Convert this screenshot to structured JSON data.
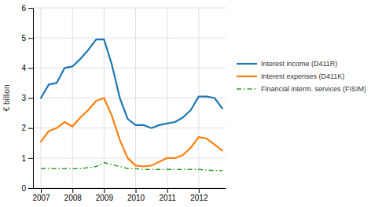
{
  "chart_data": {
    "type": "line",
    "ylabel": "€ billion",
    "x": [
      2007,
      2007.25,
      2007.5,
      2007.75,
      2008.0,
      2008.25,
      2008.5,
      2008.75,
      2009.0,
      2009.25,
      2009.5,
      2009.75,
      2010.0,
      2010.25,
      2010.5,
      2010.75,
      2011.0,
      2011.25,
      2011.5,
      2011.75,
      2012.0,
      2012.25,
      2012.5,
      2012.75
    ],
    "series": [
      {
        "name": "Interest income (D411R)",
        "line_style": "solid",
        "values": [
          3.0,
          3.45,
          3.5,
          4.0,
          4.05,
          4.3,
          4.6,
          4.95,
          4.95,
          4.1,
          3.0,
          2.3,
          2.1,
          2.1,
          2.0,
          2.1,
          2.15,
          2.2,
          2.35,
          2.6,
          3.05,
          3.05,
          3.0,
          2.65
        ]
      },
      {
        "name": "Interest expenses (D411K)",
        "line_style": "solid",
        "values": [
          1.55,
          1.9,
          2.0,
          2.2,
          2.05,
          2.35,
          2.6,
          2.9,
          3.0,
          2.4,
          1.6,
          1.0,
          0.75,
          0.72,
          0.75,
          0.88,
          1.0,
          1.0,
          1.1,
          1.35,
          1.7,
          1.65,
          1.45,
          1.25
        ]
      },
      {
        "name": "Financial interm. services (FISIM)",
        "line_style": "dashdot",
        "values": [
          0.65,
          0.65,
          0.65,
          0.65,
          0.65,
          0.65,
          0.68,
          0.72,
          0.85,
          0.78,
          0.72,
          0.65,
          0.65,
          0.62,
          0.62,
          0.62,
          0.62,
          0.62,
          0.62,
          0.62,
          0.62,
          0.6,
          0.58,
          0.58
        ]
      }
    ],
    "xlim": [
      2006.75,
      2012.85
    ],
    "xticks": [
      2007,
      2008,
      2009,
      2010,
      2011,
      2012
    ],
    "ylim": [
      0,
      6
    ],
    "yticks": [
      0,
      1,
      2,
      3,
      4,
      5,
      6
    ],
    "grid": true,
    "legend": "right"
  }
}
